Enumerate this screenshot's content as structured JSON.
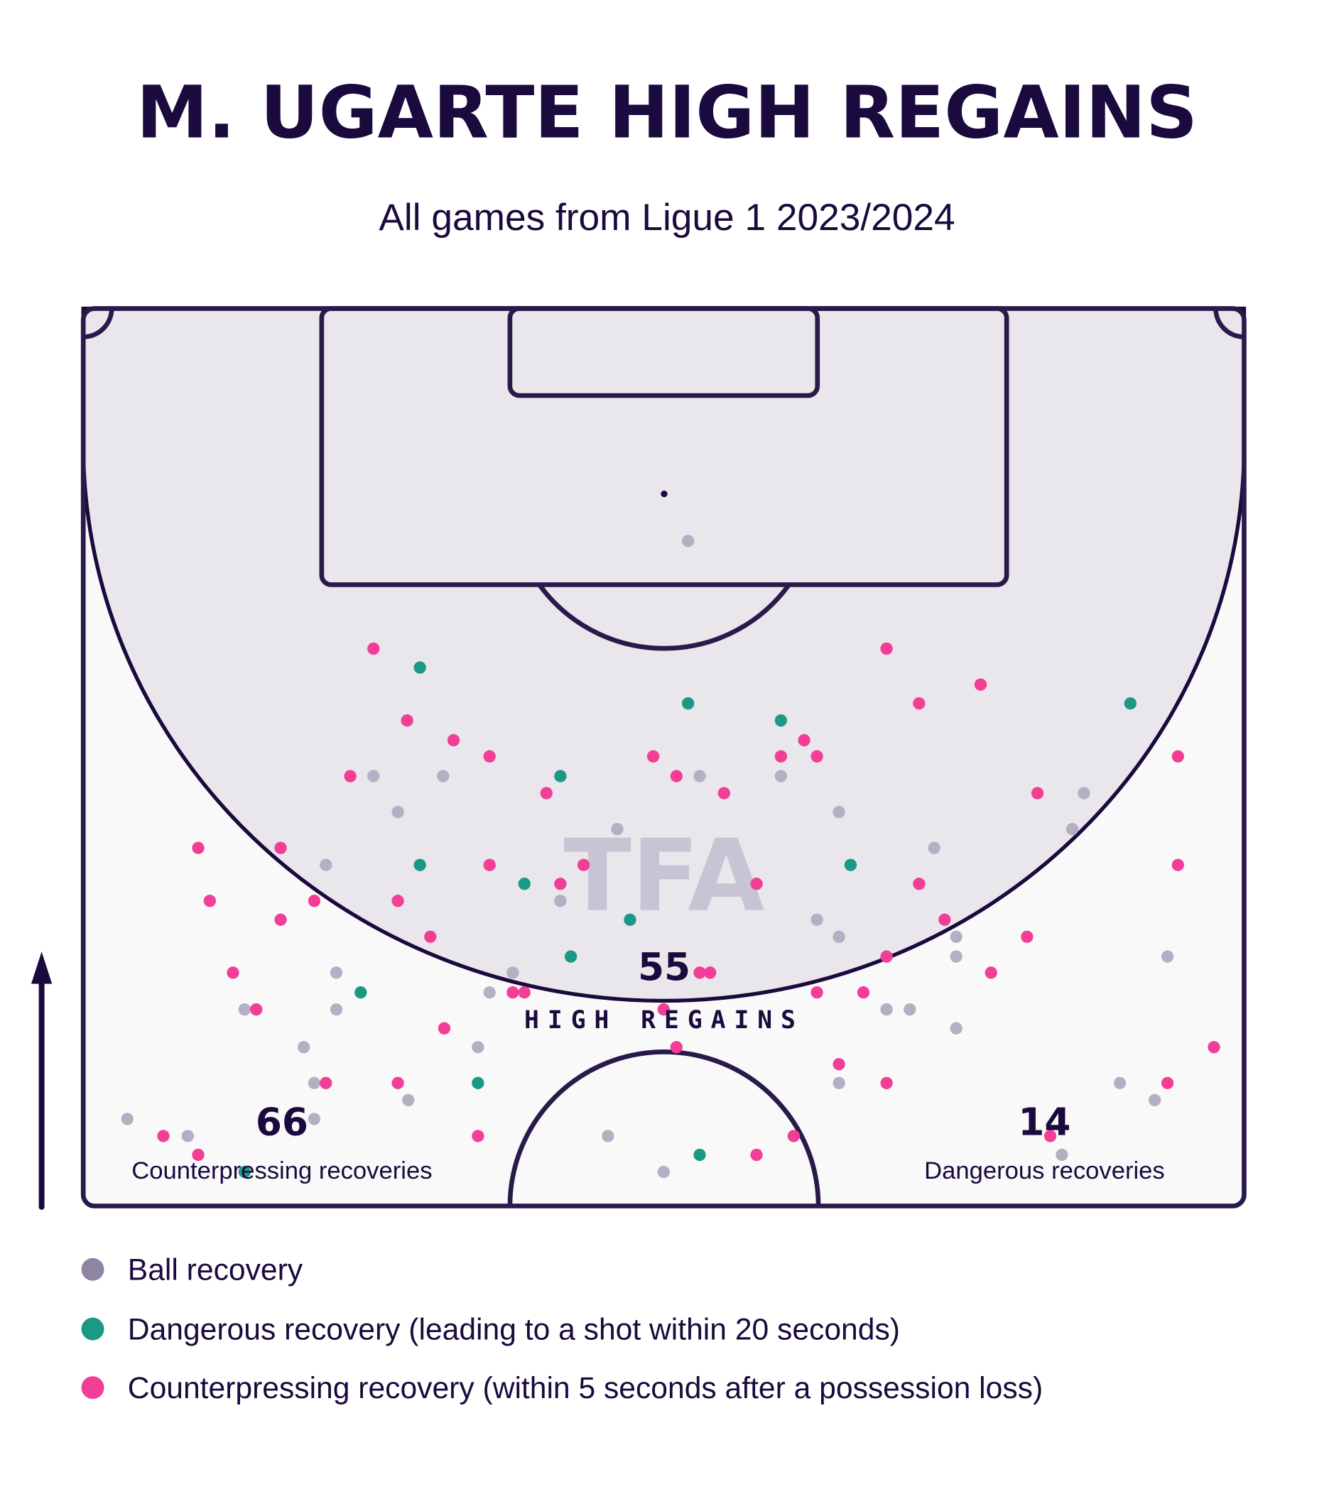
{
  "chart_data": {
    "type": "scatter",
    "title": "M. UGARTE HIGH REGAINS",
    "subtitle": "All games from Ligue 1 2023/2024",
    "coordinate_note": "x = % of pitch width (left to right), y = % of half-pitch depth from opponent goal line",
    "watermark": "TFA",
    "stats": [
      {
        "value": "55",
        "label": "HIGH REGAINS"
      },
      {
        "value": "66",
        "label": "Counterpressing recoveries"
      },
      {
        "value": "14",
        "label": "Dangerous recoveries"
      }
    ],
    "legend": [
      {
        "key": "ball",
        "label": "Ball recovery",
        "color": "#8e84a3"
      },
      {
        "key": "danger",
        "label": "Dangerous recovery (leading to a shot within 20 seconds)",
        "color": "#1a9985"
      },
      {
        "key": "counter",
        "label": "Counterpressing recovery (within 5 seconds after a possession loss)",
        "color": "#f23e96"
      }
    ],
    "point_colors": {
      "ball": "#b5afc4",
      "danger": "#1a9985",
      "counter": "#f23e96"
    },
    "points": [
      [
        52.1,
        25.9,
        "ball"
      ],
      [
        25.0,
        37.9,
        "counter"
      ],
      [
        29.0,
        40.0,
        "danger"
      ],
      [
        69.2,
        37.9,
        "counter"
      ],
      [
        52.1,
        44.0,
        "danger"
      ],
      [
        72.0,
        44.0,
        "counter"
      ],
      [
        77.3,
        41.9,
        "counter"
      ],
      [
        90.2,
        44.0,
        "danger"
      ],
      [
        27.9,
        45.9,
        "counter"
      ],
      [
        60.1,
        45.9,
        "danger"
      ],
      [
        31.9,
        48.1,
        "counter"
      ],
      [
        62.1,
        48.1,
        "counter"
      ],
      [
        35.0,
        49.9,
        "counter"
      ],
      [
        49.1,
        49.9,
        "counter"
      ],
      [
        60.1,
        49.9,
        "counter"
      ],
      [
        63.2,
        49.9,
        "counter"
      ],
      [
        94.3,
        49.9,
        "counter"
      ],
      [
        23.0,
        52.1,
        "counter"
      ],
      [
        25.0,
        52.1,
        "ball"
      ],
      [
        31.0,
        52.1,
        "ball"
      ],
      [
        41.1,
        52.1,
        "danger"
      ],
      [
        51.1,
        52.1,
        "counter"
      ],
      [
        53.1,
        52.1,
        "ball"
      ],
      [
        60.1,
        52.1,
        "ball"
      ],
      [
        39.9,
        54.0,
        "counter"
      ],
      [
        55.2,
        54.0,
        "counter"
      ],
      [
        82.2,
        54.0,
        "counter"
      ],
      [
        86.2,
        54.0,
        "ball"
      ],
      [
        27.1,
        56.1,
        "ball"
      ],
      [
        65.1,
        56.1,
        "ball"
      ],
      [
        46.0,
        58.0,
        "ball"
      ],
      [
        85.2,
        58.0,
        "ball"
      ],
      [
        9.9,
        60.1,
        "counter"
      ],
      [
        17.0,
        60.1,
        "counter"
      ],
      [
        73.3,
        60.1,
        "ball"
      ],
      [
        20.9,
        62.0,
        "ball"
      ],
      [
        29.0,
        62.0,
        "danger"
      ],
      [
        35.0,
        62.0,
        "counter"
      ],
      [
        43.1,
        62.0,
        "counter"
      ],
      [
        66.1,
        62.0,
        "danger"
      ],
      [
        94.3,
        62.0,
        "counter"
      ],
      [
        38.0,
        64.1,
        "danger"
      ],
      [
        41.1,
        64.1,
        "counter"
      ],
      [
        58.0,
        64.1,
        "counter"
      ],
      [
        72.0,
        64.1,
        "counter"
      ],
      [
        10.9,
        66.0,
        "counter"
      ],
      [
        19.9,
        66.0,
        "counter"
      ],
      [
        27.1,
        66.0,
        "counter"
      ],
      [
        41.1,
        66.0,
        "ball"
      ],
      [
        17.0,
        68.1,
        "counter"
      ],
      [
        47.1,
        68.1,
        "danger"
      ],
      [
        63.2,
        68.1,
        "ball"
      ],
      [
        74.2,
        68.1,
        "counter"
      ],
      [
        29.9,
        70.0,
        "counter"
      ],
      [
        65.1,
        70.0,
        "ball"
      ],
      [
        75.2,
        70.0,
        "ball"
      ],
      [
        81.3,
        70.0,
        "counter"
      ],
      [
        42.0,
        72.2,
        "danger"
      ],
      [
        69.2,
        72.2,
        "counter"
      ],
      [
        75.2,
        72.2,
        "ball"
      ],
      [
        93.4,
        72.2,
        "ball"
      ],
      [
        12.9,
        74.0,
        "counter"
      ],
      [
        21.8,
        74.0,
        "ball"
      ],
      [
        37.0,
        74.0,
        "ball"
      ],
      [
        53.1,
        74.0,
        "counter"
      ],
      [
        54.0,
        74.0,
        "counter"
      ],
      [
        78.2,
        74.0,
        "counter"
      ],
      [
        23.9,
        76.2,
        "danger"
      ],
      [
        35.0,
        76.2,
        "ball"
      ],
      [
        37.0,
        76.2,
        "counter"
      ],
      [
        38.0,
        76.2,
        "counter"
      ],
      [
        63.2,
        76.2,
        "counter"
      ],
      [
        67.2,
        76.2,
        "counter"
      ],
      [
        13.9,
        78.1,
        "ball"
      ],
      [
        14.9,
        78.1,
        "counter"
      ],
      [
        21.8,
        78.1,
        "ball"
      ],
      [
        50.0,
        78.1,
        "counter"
      ],
      [
        69.2,
        78.1,
        "ball"
      ],
      [
        71.2,
        78.1,
        "ball"
      ],
      [
        31.1,
        80.2,
        "counter"
      ],
      [
        75.2,
        80.2,
        "ball"
      ],
      [
        19.0,
        82.3,
        "ball"
      ],
      [
        34.0,
        82.3,
        "ball"
      ],
      [
        51.1,
        82.3,
        "counter"
      ],
      [
        97.4,
        82.3,
        "counter"
      ],
      [
        65.1,
        84.2,
        "counter"
      ],
      [
        19.9,
        86.3,
        "ball"
      ],
      [
        20.9,
        86.3,
        "counter"
      ],
      [
        27.1,
        86.3,
        "counter"
      ],
      [
        34.0,
        86.3,
        "danger"
      ],
      [
        65.1,
        86.3,
        "ball"
      ],
      [
        69.2,
        86.3,
        "counter"
      ],
      [
        89.3,
        86.3,
        "ball"
      ],
      [
        93.4,
        86.3,
        "counter"
      ],
      [
        28.0,
        88.2,
        "ball"
      ],
      [
        92.3,
        88.2,
        "ball"
      ],
      [
        3.8,
        90.3,
        "ball"
      ],
      [
        19.9,
        90.3,
        "ball"
      ],
      [
        6.9,
        92.2,
        "counter"
      ],
      [
        9.0,
        92.2,
        "ball"
      ],
      [
        34.0,
        92.2,
        "counter"
      ],
      [
        45.2,
        92.2,
        "ball"
      ],
      [
        61.2,
        92.2,
        "counter"
      ],
      [
        83.3,
        92.2,
        "counter"
      ],
      [
        9.9,
        94.3,
        "counter"
      ],
      [
        53.1,
        94.3,
        "danger"
      ],
      [
        58.0,
        94.3,
        "counter"
      ],
      [
        84.3,
        94.3,
        "ball"
      ],
      [
        13.9,
        96.2,
        "danger"
      ],
      [
        50.0,
        96.2,
        "ball"
      ]
    ]
  }
}
